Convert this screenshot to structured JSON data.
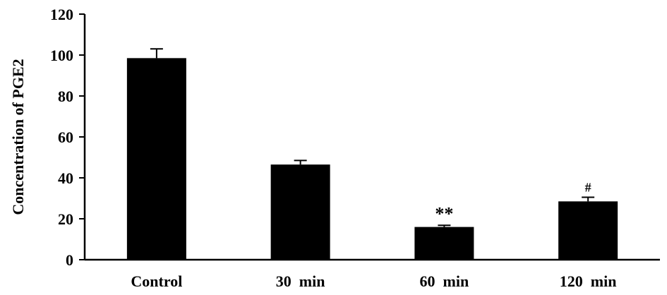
{
  "chart_data": {
    "type": "bar",
    "title": "",
    "xlabel": "",
    "ylabel": "Concentration of PGE2",
    "ylim": [
      0,
      120
    ],
    "yticks": [
      0,
      20,
      40,
      60,
      80,
      100,
      120
    ],
    "grid": false,
    "categories": [
      "Control",
      "30  min",
      "60  min",
      "120  min"
    ],
    "values": [
      98.5,
      46.5,
      16,
      28.5
    ],
    "errors": [
      4.5,
      2,
      0.8,
      2
    ],
    "annotations": [
      "",
      "",
      "**",
      "#"
    ],
    "colors": {
      "bar": "#000000",
      "axis": "#000000"
    }
  }
}
